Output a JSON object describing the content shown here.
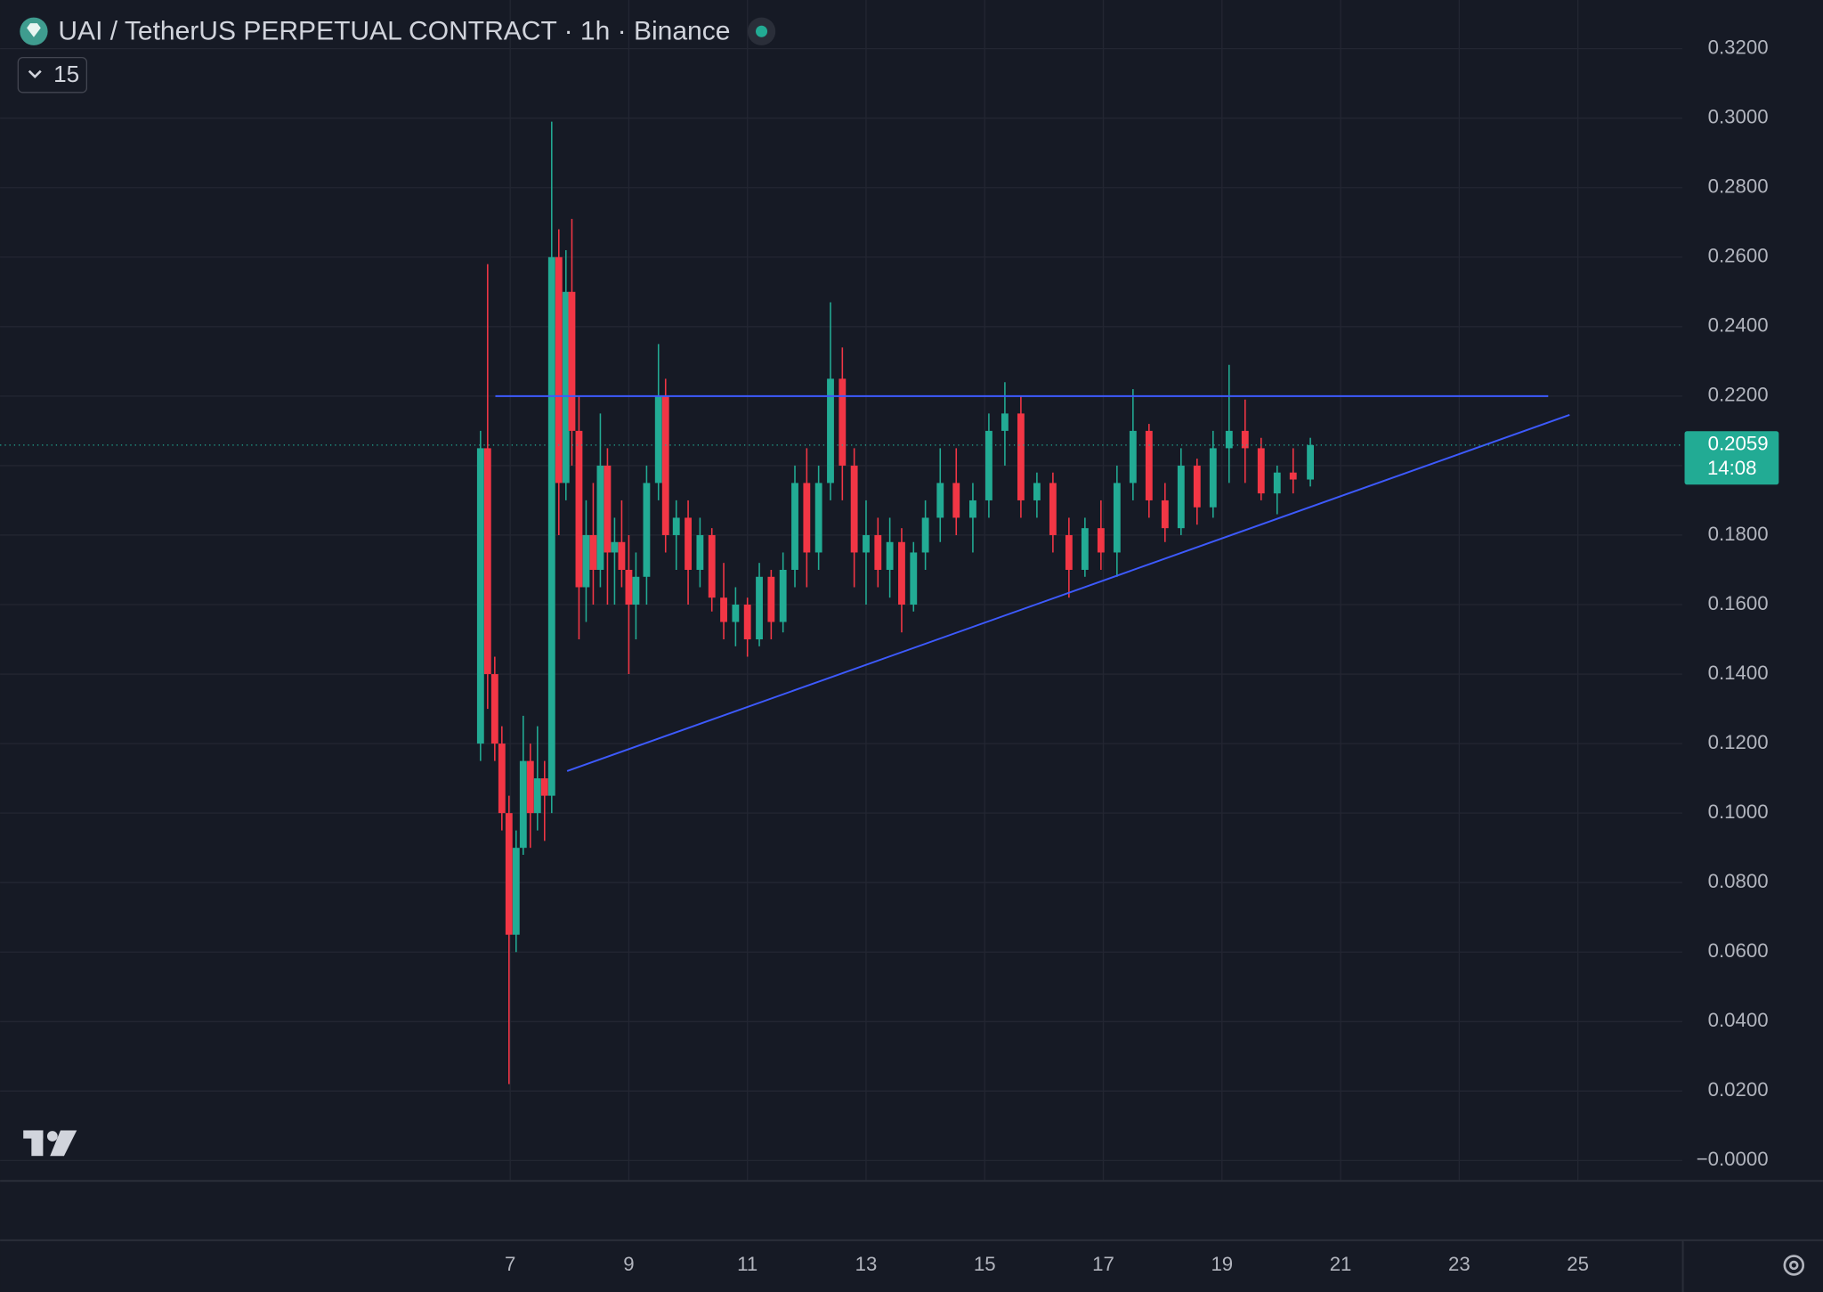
{
  "chart_data": {
    "type": "candlestick",
    "title": "UAI / TetherUS PERPETUAL CONTRACT · 1h · Binance",
    "interval_button": "15",
    "up_color": "#22ab94",
    "down_color": "#f23645",
    "grid": true,
    "xlim": [
      -1.6,
      26.76
    ],
    "ylim": [
      -0.0057,
      0.334
    ],
    "xticks": [
      7,
      9,
      11,
      13,
      15,
      17,
      19,
      21,
      23,
      25
    ],
    "yticks": [
      {
        "value": 0.32,
        "label": "0.3200"
      },
      {
        "value": 0.3,
        "label": "0.3000"
      },
      {
        "value": 0.28,
        "label": "0.2800"
      },
      {
        "value": 0.26,
        "label": "0.2600"
      },
      {
        "value": 0.24,
        "label": "0.2400"
      },
      {
        "value": 0.22,
        "label": "0.2200"
      },
      {
        "value": 0.2,
        "label": "0.2000"
      },
      {
        "value": 0.18,
        "label": "0.1800"
      },
      {
        "value": 0.16,
        "label": "0.1600"
      },
      {
        "value": 0.14,
        "label": "0.1400"
      },
      {
        "value": 0.12,
        "label": "0.1200"
      },
      {
        "value": 0.1,
        "label": "0.1000"
      },
      {
        "value": 0.08,
        "label": "0.0800"
      },
      {
        "value": 0.06,
        "label": "0.0600"
      },
      {
        "value": 0.04,
        "label": "0.0400"
      },
      {
        "value": 0.02,
        "label": "0.0200"
      },
      {
        "value": 0,
        "label": "−0.0000"
      }
    ],
    "x": [
      6.5,
      6.62,
      6.74,
      6.86,
      6.98,
      7.1,
      7.22,
      7.34,
      7.46,
      7.58,
      7.7,
      7.82,
      7.94,
      8.04,
      8.16,
      8.28,
      8.4,
      8.52,
      8.64,
      8.76,
      8.88,
      9.0,
      9.12,
      9.3,
      9.5,
      9.62,
      9.8,
      10.0,
      10.2,
      10.4,
      10.6,
      10.8,
      11.0,
      11.2,
      11.4,
      11.6,
      11.8,
      12.0,
      12.2,
      12.4,
      12.6,
      12.8,
      13.0,
      13.2,
      13.4,
      13.6,
      13.8,
      14.0,
      14.25,
      14.52,
      14.8,
      15.07,
      15.34,
      15.61,
      15.88,
      16.15,
      16.42,
      16.69,
      16.96,
      17.23,
      17.5,
      17.77,
      18.04,
      18.31,
      18.58,
      18.85,
      19.12,
      19.39,
      19.66,
      19.93,
      20.2,
      20.49
    ],
    "open": [
      0.12,
      0.205,
      0.14,
      0.12,
      0.1,
      0.065,
      0.09,
      0.115,
      0.1,
      0.11,
      0.105,
      0.26,
      0.195,
      0.25,
      0.21,
      0.165,
      0.18,
      0.17,
      0.2,
      0.175,
      0.178,
      0.17,
      0.16,
      0.168,
      0.195,
      0.22,
      0.18,
      0.185,
      0.17,
      0.18,
      0.162,
      0.155,
      0.16,
      0.15,
      0.168,
      0.155,
      0.17,
      0.195,
      0.175,
      0.195,
      0.225,
      0.2,
      0.175,
      0.18,
      0.17,
      0.178,
      0.16,
      0.175,
      0.185,
      0.195,
      0.185,
      0.19,
      0.21,
      0.215,
      0.19,
      0.195,
      0.18,
      0.17,
      0.182,
      0.175,
      0.195,
      0.21,
      0.19,
      0.182,
      0.2,
      0.188,
      0.205,
      0.21,
      0.205,
      0.192,
      0.198,
      0.196
    ],
    "high": [
      0.21,
      0.258,
      0.145,
      0.125,
      0.105,
      0.095,
      0.128,
      0.12,
      0.125,
      0.115,
      0.299,
      0.268,
      0.262,
      0.271,
      0.22,
      0.19,
      0.195,
      0.215,
      0.205,
      0.185,
      0.19,
      0.18,
      0.175,
      0.2,
      0.235,
      0.225,
      0.19,
      0.19,
      0.185,
      0.182,
      0.172,
      0.165,
      0.162,
      0.172,
      0.17,
      0.175,
      0.2,
      0.205,
      0.2,
      0.247,
      0.234,
      0.205,
      0.19,
      0.185,
      0.185,
      0.182,
      0.178,
      0.19,
      0.205,
      0.205,
      0.195,
      0.215,
      0.224,
      0.22,
      0.198,
      0.198,
      0.185,
      0.185,
      0.19,
      0.2,
      0.222,
      0.212,
      0.195,
      0.205,
      0.202,
      0.21,
      0.229,
      0.219,
      0.208,
      0.2,
      0.205,
      0.208
    ],
    "low": [
      0.115,
      0.13,
      0.115,
      0.095,
      0.022,
      0.06,
      0.088,
      0.09,
      0.095,
      0.092,
      0.1,
      0.18,
      0.19,
      0.2,
      0.15,
      0.155,
      0.16,
      0.165,
      0.16,
      0.16,
      0.165,
      0.14,
      0.15,
      0.16,
      0.19,
      0.175,
      0.17,
      0.16,
      0.165,
      0.158,
      0.15,
      0.148,
      0.145,
      0.148,
      0.15,
      0.152,
      0.165,
      0.165,
      0.17,
      0.19,
      0.19,
      0.165,
      0.16,
      0.165,
      0.162,
      0.152,
      0.158,
      0.17,
      0.178,
      0.18,
      0.175,
      0.185,
      0.2,
      0.185,
      0.185,
      0.175,
      0.162,
      0.168,
      0.17,
      0.168,
      0.19,
      0.185,
      0.178,
      0.18,
      0.183,
      0.185,
      0.195,
      0.195,
      0.19,
      0.186,
      0.192,
      0.194
    ],
    "close": [
      0.205,
      0.14,
      0.12,
      0.1,
      0.065,
      0.09,
      0.115,
      0.1,
      0.11,
      0.105,
      0.26,
      0.195,
      0.25,
      0.21,
      0.165,
      0.18,
      0.17,
      0.2,
      0.175,
      0.178,
      0.17,
      0.16,
      0.168,
      0.195,
      0.22,
      0.18,
      0.185,
      0.17,
      0.18,
      0.162,
      0.155,
      0.16,
      0.15,
      0.168,
      0.155,
      0.17,
      0.195,
      0.175,
      0.195,
      0.225,
      0.2,
      0.175,
      0.18,
      0.17,
      0.178,
      0.16,
      0.175,
      0.185,
      0.195,
      0.185,
      0.19,
      0.21,
      0.215,
      0.19,
      0.195,
      0.18,
      0.17,
      0.182,
      0.175,
      0.195,
      0.21,
      0.19,
      0.182,
      0.2,
      0.188,
      0.205,
      0.21,
      0.205,
      0.192,
      0.198,
      0.196,
      0.2059
    ],
    "drawings": [
      {
        "color": "#3d5afe",
        "x": [
          6.75,
          24.5
        ],
        "y": [
          0.22,
          0.22
        ]
      },
      {
        "color": "#3d5afe",
        "x": [
          7.96,
          24.86
        ],
        "y": [
          0.1121,
          0.2146
        ]
      }
    ],
    "last_price": 0.2059,
    "countdown": "14:08"
  }
}
